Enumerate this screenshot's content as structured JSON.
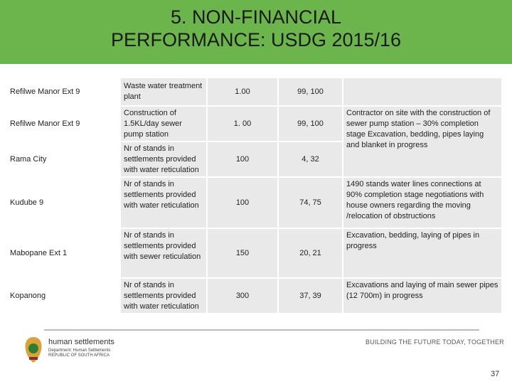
{
  "header": {
    "title": "5. NON-FINANCIAL PERFORMANCE:  USDG 2015/16"
  },
  "table": {
    "rows": [
      {
        "project": "Refilwe Manor Ext 9",
        "indicator": "Waste water treatment plant",
        "target": "1.00",
        "actual": "99, 100"
      },
      {
        "project": "Refilwe Manor Ext 9",
        "indicator": "Construction of 1.5KL/day sewer pump station",
        "target": "1. 00",
        "actual": "99, 100",
        "remarks": "Contractor on site with the construction of sewer pump station – 30% completion stage Excavation, bedding, pipes laying and blanket in progress"
      },
      {
        "project": "Rama City",
        "indicator": "Nr of stands in settlements provided with water reticulation",
        "target": "100",
        "actual": "4, 32"
      },
      {
        "project": "Kudube 9",
        "indicator": "Nr of stands in settlements provided with water reticulation",
        "target": "100",
        "actual": "74, 75",
        "remarks": "1490 stands water lines connections at 90% completion stage negotiations with house owners regarding the moving /relocation of obstructions"
      },
      {
        "project": "Mabopane Ext 1",
        "indicator": "Nr of stands in settlements provided with sewer reticulation",
        "target": "150",
        "actual": "20, 21",
        "remarks": "Excavation, bedding, laying of pipes in progress"
      },
      {
        "project": "Kopanong",
        "indicator": "Nr of stands in settlements provided with water reticulation",
        "target": "300",
        "actual": "37, 39",
        "remarks": "Excavations and laying of main sewer pipes (12 700m) in progress"
      }
    ]
  },
  "footer": {
    "brand": "human settlements",
    "department": "Department: Human Settlements REPUBLIC OF SOUTH AFRICA",
    "slogan": "BUILDING THE FUTURE TODAY, TOGETHER",
    "page": "37"
  }
}
